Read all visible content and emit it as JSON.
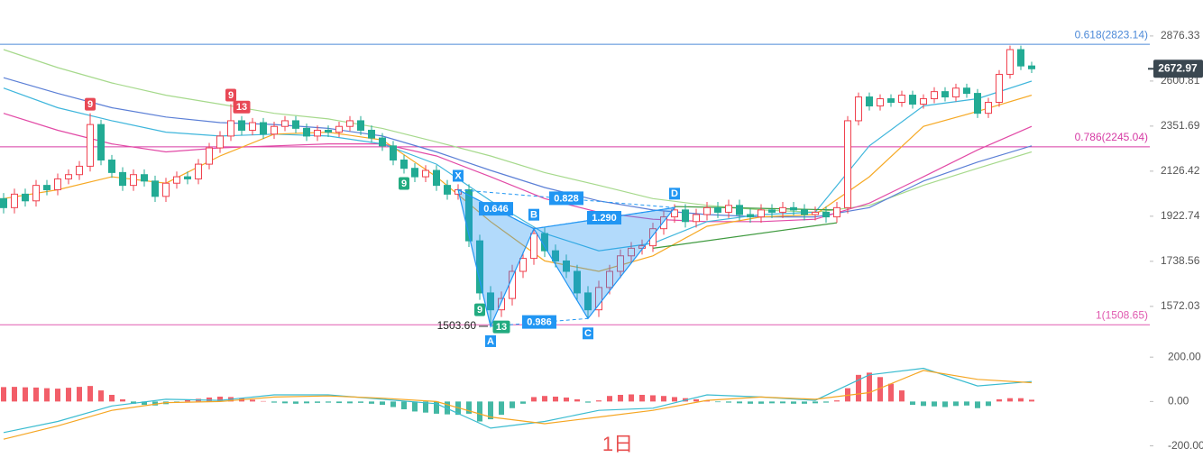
{
  "chart_data": {
    "type": "candlestick",
    "log_scale": true,
    "grid": false,
    "colors": {
      "up": "#f0424f",
      "down": "#22ab94"
    },
    "open": [
      2000,
      1960,
      2020,
      1990,
      2060,
      2040,
      2090,
      2110,
      2150,
      2360,
      2180,
      2120,
      2060,
      2110,
      2080,
      2010,
      2070,
      2100,
      2090,
      2160,
      2240,
      2300,
      2380,
      2330,
      2370,
      2310,
      2350,
      2380,
      2340,
      2300,
      2330,
      2320,
      2350,
      2380,
      2330,
      2290,
      2250,
      2180,
      2140,
      2100,
      2130,
      2060,
      2020,
      2040,
      1820,
      1620,
      1560,
      1600,
      1700,
      1750,
      1850,
      1780,
      1740,
      1700,
      1620,
      1560,
      1640,
      1700,
      1760,
      1790,
      1800,
      1870,
      1920,
      1950,
      1900,
      1930,
      1960,
      1940,
      1970,
      1930,
      1920,
      1950,
      1940,
      1960,
      1950,
      1930,
      1940,
      1920,
      1960,
      2380,
      2510,
      2460,
      2500,
      2480,
      2520,
      2470,
      2500,
      2540,
      2510,
      2560,
      2530,
      2420,
      2480,
      2640,
      2790,
      2690
    ],
    "high": [
      2025,
      2045,
      2045,
      2085,
      2085,
      2115,
      2135,
      2175,
      2420,
      2385,
      2205,
      2145,
      2135,
      2135,
      2105,
      2095,
      2125,
      2125,
      2185,
      2265,
      2325,
      2470,
      2405,
      2395,
      2395,
      2375,
      2405,
      2405,
      2365,
      2355,
      2355,
      2375,
      2405,
      2405,
      2355,
      2315,
      2275,
      2205,
      2165,
      2155,
      2155,
      2085,
      2065,
      2065,
      1845,
      1645,
      1625,
      1725,
      1775,
      1875,
      1875,
      1805,
      1765,
      1725,
      1645,
      1665,
      1725,
      1785,
      1815,
      1825,
      1895,
      1945,
      1975,
      1975,
      1955,
      1985,
      1985,
      1995,
      1995,
      1955,
      1975,
      1975,
      1985,
      1985,
      1975,
      1965,
      1965,
      1985,
      2405,
      2535,
      2535,
      2525,
      2525,
      2545,
      2545,
      2525,
      2565,
      2565,
      2585,
      2585,
      2555,
      2505,
      2665,
      2815,
      2815,
      2715
    ],
    "low": [
      1935,
      1935,
      1965,
      1965,
      2015,
      2015,
      2065,
      2085,
      2125,
      2155,
      2095,
      2035,
      2035,
      2055,
      1985,
      1985,
      2045,
      2065,
      2065,
      2135,
      2215,
      2275,
      2305,
      2305,
      2285,
      2285,
      2325,
      2315,
      2275,
      2275,
      2295,
      2295,
      2325,
      2305,
      2265,
      2225,
      2155,
      2115,
      2075,
      2075,
      2035,
      1995,
      1995,
      1795,
      1595,
      1503.6,
      1535,
      1575,
      1675,
      1725,
      1755,
      1715,
      1675,
      1595,
      1530,
      1535,
      1615,
      1675,
      1735,
      1765,
      1775,
      1845,
      1895,
      1875,
      1875,
      1905,
      1915,
      1915,
      1905,
      1895,
      1895,
      1915,
      1915,
      1925,
      1905,
      1905,
      1895,
      1895,
      1935,
      2355,
      2435,
      2435,
      2455,
      2455,
      2445,
      2445,
      2475,
      2485,
      2485,
      2505,
      2395,
      2395,
      2455,
      2615,
      2665,
      2648
    ],
    "close": [
      1960,
      2020,
      1990,
      2060,
      2040,
      2090,
      2110,
      2150,
      2360,
      2180,
      2120,
      2060,
      2110,
      2080,
      2010,
      2070,
      2100,
      2090,
      2160,
      2240,
      2300,
      2380,
      2330,
      2370,
      2310,
      2350,
      2380,
      2340,
      2300,
      2330,
      2320,
      2350,
      2380,
      2330,
      2290,
      2250,
      2180,
      2140,
      2100,
      2130,
      2060,
      2020,
      2040,
      1820,
      1620,
      1560,
      1600,
      1700,
      1750,
      1850,
      1780,
      1740,
      1700,
      1620,
      1560,
      1640,
      1700,
      1760,
      1790,
      1800,
      1870,
      1920,
      1950,
      1900,
      1930,
      1960,
      1940,
      1970,
      1930,
      1920,
      1950,
      1940,
      1960,
      1950,
      1930,
      1940,
      1920,
      1960,
      2380,
      2510,
      2460,
      2500,
      2480,
      2520,
      2470,
      2500,
      2540,
      2510,
      2560,
      2530,
      2420,
      2480,
      2640,
      2790,
      2690,
      2673
    ],
    "ylim": [
      1421,
      3117
    ],
    "yticks": [
      2876.33,
      2600.81,
      2351.69,
      2126.42,
      1922.74,
      1738.56,
      1572.03
    ],
    "last_price": 2672.97,
    "levels": [
      {
        "value": 2823.14,
        "label": "0.618(2823.14)",
        "color": "#4d8ad8"
      },
      {
        "value": 2245.04,
        "label": "0.786(2245.04)",
        "color": "#d63aa4"
      },
      {
        "value": 1508.65,
        "label": "1(1508.65)",
        "color": "#e05ab0"
      }
    ],
    "line_x": [
      0,
      5,
      10,
      15,
      20,
      25,
      30,
      35,
      40,
      45,
      50,
      55,
      60,
      65,
      70,
      75,
      80,
      85,
      90,
      95
    ],
    "ma": [
      {
        "color": "#a6d98c",
        "values": [
          2790,
          2680,
          2590,
          2520,
          2470,
          2420,
          2390,
          2340,
          2270,
          2200,
          2120,
          2060,
          2000,
          1970,
          1950,
          1940,
          1970,
          2060,
          2140,
          2220
        ]
      },
      {
        "color": "#5b7fd6",
        "values": [
          2620,
          2530,
          2450,
          2400,
          2370,
          2360,
          2340,
          2300,
          2220,
          2130,
          2050,
          1990,
          1950,
          1930,
          1920,
          1920,
          1960,
          2080,
          2170,
          2250
        ]
      },
      {
        "color": "#e24aa6",
        "values": [
          2420,
          2330,
          2260,
          2220,
          2240,
          2250,
          2260,
          2260,
          2200,
          2100,
          2000,
          1940,
          1910,
          1900,
          1900,
          1910,
          1980,
          2100,
          2230,
          2350
        ]
      },
      {
        "color": "#3fb6dc",
        "values": [
          2560,
          2450,
          2380,
          2320,
          2300,
          2310,
          2300,
          2260,
          2160,
          1990,
          1850,
          1780,
          1810,
          1900,
          1930,
          1940,
          2250,
          2460,
          2500,
          2600
        ]
      },
      {
        "color": "#f6a925",
        "values": [
          2000,
          2040,
          2100,
          2070,
          2200,
          2310,
          2320,
          2280,
          2100,
          1900,
          1740,
          1700,
          1760,
          1880,
          1920,
          1930,
          2100,
          2350,
          2430,
          2520
        ]
      }
    ],
    "pattern": {
      "points": [
        {
          "name": "X",
          "x": 42,
          "value": 2040
        },
        {
          "name": "A",
          "x": 45,
          "value": 1503.6
        },
        {
          "name": "B",
          "x": 49,
          "value": 1870
        },
        {
          "name": "C",
          "x": 54,
          "value": 1530
        },
        {
          "name": "D",
          "x": 62,
          "value": 1960
        }
      ],
      "ratios": [
        "0.646",
        "0.828",
        "1.290",
        "0.986"
      ],
      "price_label": {
        "value": 1503.6,
        "label": "1503.60"
      },
      "color": "#2196f3"
    },
    "td": [
      {
        "x": 8,
        "value": 9,
        "color": "#e84855"
      },
      {
        "x": 21,
        "value": 9,
        "color": "#e84855"
      },
      {
        "x": 22,
        "value": 13,
        "color": "#e84855"
      },
      {
        "x": 37,
        "value": 9,
        "color": "#22ab80"
      },
      {
        "x": 44,
        "value": 9,
        "color": "#22ab80"
      },
      {
        "x": 46,
        "value": 13,
        "color": "#22ab80"
      }
    ],
    "trendlines": [
      {
        "color": "#3f9a3f",
        "x": [
          62,
          77
        ],
        "values": [
          1965,
          1950
        ]
      },
      {
        "color": "#3f9a3f",
        "x": [
          60,
          77
        ],
        "values": [
          1790,
          1895
        ]
      }
    ],
    "macd": {
      "histogram": [
        65,
        66,
        64,
        63,
        60,
        58,
        62,
        66,
        70,
        50,
        30,
        10,
        -10,
        -15,
        -18,
        -12,
        -5,
        8,
        12,
        18,
        22,
        20,
        15,
        8,
        2,
        -5,
        -8,
        -10,
        -8,
        -6,
        -5,
        -7,
        -8,
        -6,
        -10,
        -15,
        -25,
        -35,
        -45,
        -50,
        -55,
        -58,
        -60,
        -55,
        -90,
        -80,
        -60,
        -30,
        -10,
        20,
        25,
        22,
        18,
        10,
        -5,
        5,
        25,
        30,
        32,
        30,
        28,
        25,
        20,
        15,
        10,
        5,
        -3,
        -5,
        -8,
        -10,
        -10,
        -8,
        -8,
        -10,
        -10,
        -8,
        -5,
        5,
        60,
        120,
        130,
        110,
        80,
        50,
        -15,
        -20,
        -22,
        -25,
        -20,
        -18,
        -30,
        -20,
        10,
        15,
        15,
        8
      ],
      "dif": {
        "color": "#3bbcd0",
        "values": [
          -140,
          -90,
          -20,
          10,
          5,
          30,
          30,
          10,
          -10,
          -120,
          -90,
          -40,
          -30,
          30,
          20,
          5,
          120,
          150,
          70,
          90
        ]
      },
      "dea": {
        "color": "#f5a623",
        "values": [
          -170,
          -110,
          -40,
          -5,
          0,
          20,
          25,
          15,
          0,
          -70,
          -100,
          -70,
          -40,
          5,
          20,
          10,
          40,
          140,
          100,
          85
        ]
      },
      "ylim": [
        -222,
        225
      ],
      "yticks": [
        {
          "value": 200,
          "label": "200.00"
        },
        {
          "value": 0,
          "label": "0.00"
        },
        {
          "value": -200,
          "label": "-200.00"
        }
      ]
    },
    "watermark": "1日"
  }
}
